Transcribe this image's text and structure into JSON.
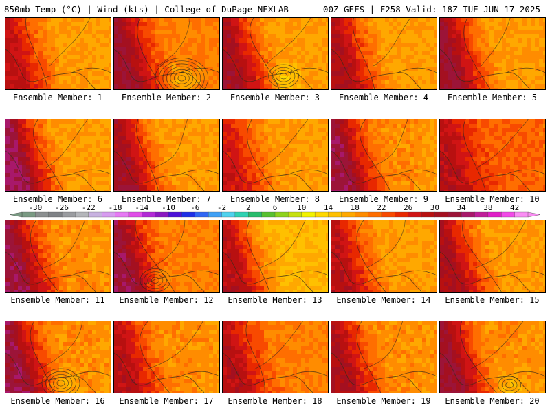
{
  "header": {
    "left": "850mb Temp (°C) | Wind (kts) | College of DuPage NEXLAB",
    "right": "00Z GEFS | F258 Valid: 18Z TUE JUN 17 2025"
  },
  "caption_prefix": "Ensemble Member: ",
  "members": [
    {
      "number": 1,
      "label": "Ensemble Member: 1",
      "base_temp": 18,
      "west_temp": 28,
      "east_temp": 17,
      "warm_core": 0,
      "low_rings": 0
    },
    {
      "number": 2,
      "label": "Ensemble Member: 2",
      "base_temp": 20,
      "west_temp": 32,
      "east_temp": 19,
      "warm_core": 0,
      "low_rings": 7
    },
    {
      "number": 3,
      "label": "Ensemble Member: 3",
      "base_temp": 18,
      "west_temp": 31,
      "east_temp": 17,
      "warm_core": 0,
      "low_rings": 4
    },
    {
      "number": 4,
      "label": "Ensemble Member: 4",
      "base_temp": 18,
      "west_temp": 30,
      "east_temp": 17,
      "warm_core": 0,
      "low_rings": 0
    },
    {
      "number": 5,
      "label": "Ensemble Member: 5",
      "base_temp": 18,
      "west_temp": 32,
      "east_temp": 17,
      "warm_core": 0,
      "low_rings": 0
    },
    {
      "number": 6,
      "label": "Ensemble Member: 6",
      "base_temp": 18,
      "west_temp": 34,
      "east_temp": 17,
      "warm_core": 0,
      "low_rings": 0
    },
    {
      "number": 7,
      "label": "Ensemble Member: 7",
      "base_temp": 18,
      "west_temp": 31,
      "east_temp": 17,
      "warm_core": 0,
      "low_rings": 0
    },
    {
      "number": 8,
      "label": "Ensemble Member: 8",
      "base_temp": 18,
      "west_temp": 27,
      "east_temp": 17,
      "warm_core": 0,
      "low_rings": 0
    },
    {
      "number": 9,
      "label": "Ensemble Member: 9",
      "base_temp": 19,
      "west_temp": 33,
      "east_temp": 17,
      "warm_core": 0,
      "low_rings": 0
    },
    {
      "number": 10,
      "label": "Ensemble Member: 10",
      "base_temp": 22,
      "west_temp": 29,
      "east_temp": 19,
      "warm_core": 0,
      "low_rings": 0
    },
    {
      "number": 11,
      "label": "Ensemble Member: 11",
      "base_temp": 19,
      "west_temp": 33,
      "east_temp": 17,
      "warm_core": 0,
      "low_rings": 0
    },
    {
      "number": 12,
      "label": "Ensemble Member: 12",
      "base_temp": 20,
      "west_temp": 33,
      "east_temp": 18,
      "warm_core": 0,
      "low_rings": 4
    },
    {
      "number": 13,
      "label": "Ensemble Member: 13",
      "base_temp": 16,
      "west_temp": 29,
      "east_temp": 14,
      "warm_core": 0,
      "low_rings": 0
    },
    {
      "number": 14,
      "label": "Ensemble Member: 14",
      "base_temp": 18,
      "west_temp": 29,
      "east_temp": 17,
      "warm_core": 0,
      "low_rings": 0
    },
    {
      "number": 15,
      "label": "Ensemble Member: 15",
      "base_temp": 18,
      "west_temp": 30,
      "east_temp": 17,
      "warm_core": 0,
      "low_rings": 0
    },
    {
      "number": 16,
      "label": "Ensemble Member: 16",
      "base_temp": 19,
      "west_temp": 33,
      "east_temp": 17,
      "warm_core": 0,
      "low_rings": 5
    },
    {
      "number": 17,
      "label": "Ensemble Member: 17",
      "base_temp": 19,
      "west_temp": 29,
      "east_temp": 17,
      "warm_core": 0,
      "low_rings": 0
    },
    {
      "number": 18,
      "label": "Ensemble Member: 18",
      "base_temp": 20,
      "west_temp": 29,
      "east_temp": 19,
      "warm_core": 0,
      "low_rings": 0
    },
    {
      "number": 19,
      "label": "Ensemble Member: 19",
      "base_temp": 19,
      "west_temp": 30,
      "east_temp": 17,
      "warm_core": 0,
      "low_rings": 0
    },
    {
      "number": 20,
      "label": "Ensemble Member: 20",
      "base_temp": 19,
      "west_temp": 32,
      "east_temp": 17,
      "warm_core": 0,
      "low_rings": 3
    }
  ],
  "colorbar": {
    "tick_labels": [
      "-30",
      "-26",
      "-22",
      "-18",
      "-14",
      "-10",
      "-6",
      "-2",
      "2",
      "6",
      "10",
      "14",
      "18",
      "22",
      "26",
      "30",
      "34",
      "38",
      "42"
    ],
    "min": -32,
    "max": 44,
    "step": 2,
    "colors": [
      "#7a9a83",
      "#8b8f90",
      "#7f8286",
      "#9a9ca0",
      "#b4b6ba",
      "#c8b2e0",
      "#d79cf0",
      "#e679f4",
      "#e04de8",
      "#b22ad6",
      "#8a18c0",
      "#4b10d8",
      "#1e2fe6",
      "#2f66f4",
      "#3fa0f6",
      "#4ed2ee",
      "#2fd2b2",
      "#28bc6c",
      "#58c030",
      "#8ed21c",
      "#c6e010",
      "#f2f200",
      "#ffd800",
      "#ffc000",
      "#ffa800",
      "#ff8c00",
      "#ff6e00",
      "#f84a00",
      "#e82800",
      "#d01414",
      "#b81010",
      "#a41020",
      "#9c1438",
      "#a8186a",
      "#c01e9a",
      "#e01ec8",
      "#f24ae8",
      "#fa8ef4"
    ]
  }
}
